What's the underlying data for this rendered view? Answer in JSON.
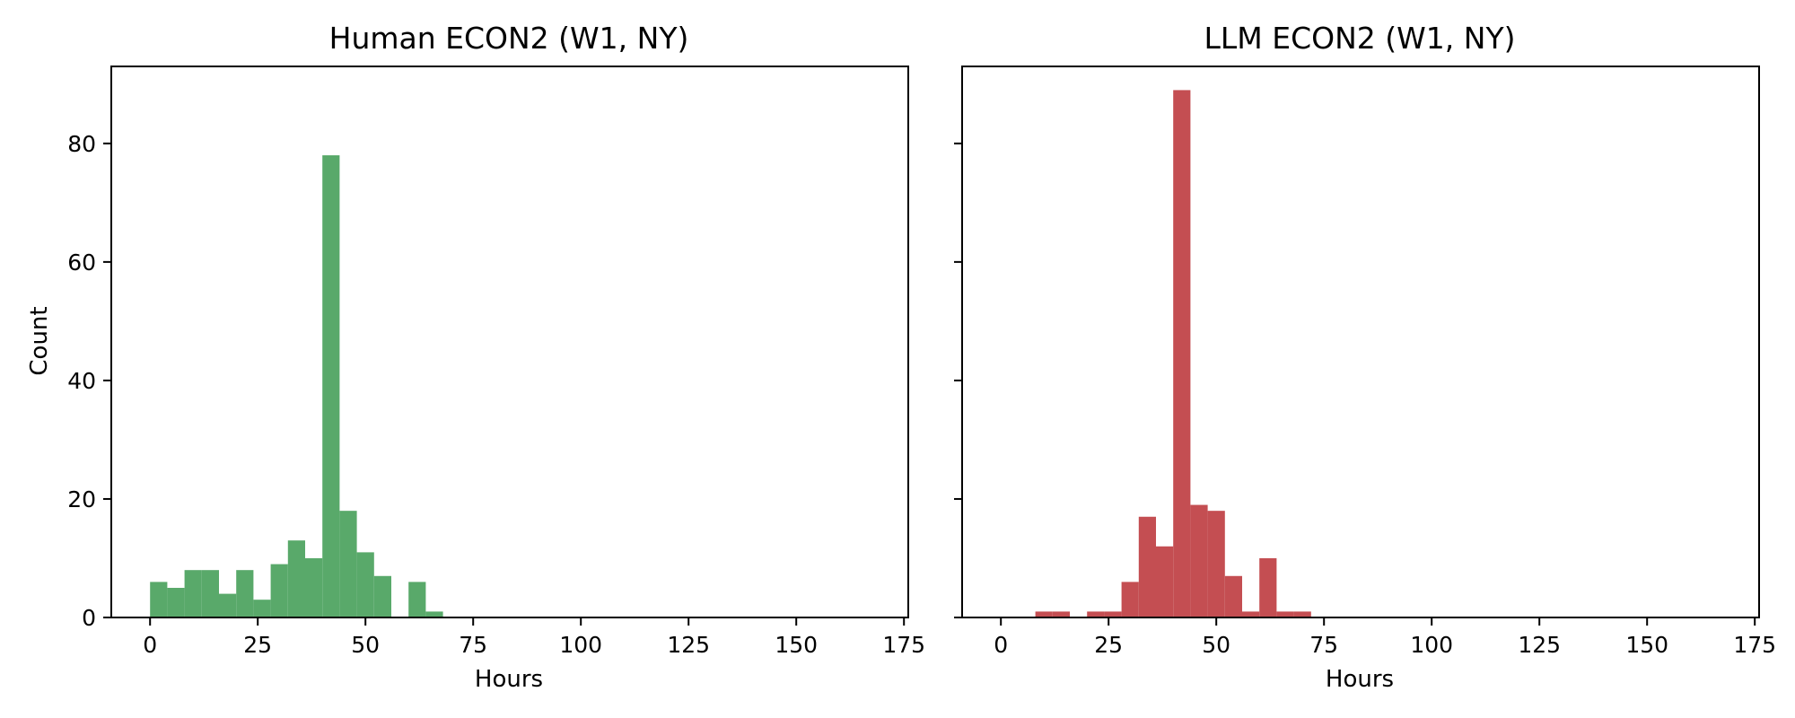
{
  "chart_data": [
    {
      "type": "bar",
      "title": "Human ECON2 (W1, NY)",
      "xlabel": "Hours",
      "ylabel": "Count",
      "color": "#59a96a",
      "bin_width": 4,
      "xlim": [
        -9,
        176
      ],
      "ylim": [
        0,
        93
      ],
      "xticks": [
        "0",
        "25",
        "50",
        "75",
        "100",
        "125",
        "150",
        "175"
      ],
      "yticks": [
        "0",
        "20",
        "40",
        "60",
        "80"
      ],
      "bins": [
        {
          "x": 0,
          "count": 6
        },
        {
          "x": 4,
          "count": 5
        },
        {
          "x": 8,
          "count": 8
        },
        {
          "x": 12,
          "count": 8
        },
        {
          "x": 16,
          "count": 4
        },
        {
          "x": 20,
          "count": 8
        },
        {
          "x": 24,
          "count": 3
        },
        {
          "x": 28,
          "count": 9
        },
        {
          "x": 32,
          "count": 13
        },
        {
          "x": 36,
          "count": 10
        },
        {
          "x": 40,
          "count": 78
        },
        {
          "x": 44,
          "count": 18
        },
        {
          "x": 48,
          "count": 11
        },
        {
          "x": 52,
          "count": 7
        },
        {
          "x": 56,
          "count": 0
        },
        {
          "x": 60,
          "count": 6
        },
        {
          "x": 64,
          "count": 1
        }
      ]
    },
    {
      "type": "bar",
      "title": "LLM ECON2 (W1, NY)",
      "xlabel": "Hours",
      "ylabel": "",
      "color": "#c44e52",
      "bin_width": 4,
      "xlim": [
        -9,
        176
      ],
      "ylim": [
        0,
        93
      ],
      "xticks": [
        "0",
        "25",
        "50",
        "75",
        "100",
        "125",
        "150",
        "175"
      ],
      "yticks": [
        "0",
        "20",
        "40",
        "60",
        "80"
      ],
      "bins": [
        {
          "x": 8,
          "count": 1
        },
        {
          "x": 12,
          "count": 1
        },
        {
          "x": 20,
          "count": 1
        },
        {
          "x": 24,
          "count": 1
        },
        {
          "x": 28,
          "count": 6
        },
        {
          "x": 32,
          "count": 17
        },
        {
          "x": 36,
          "count": 12
        },
        {
          "x": 40,
          "count": 89
        },
        {
          "x": 44,
          "count": 19
        },
        {
          "x": 48,
          "count": 18
        },
        {
          "x": 52,
          "count": 7
        },
        {
          "x": 56,
          "count": 1
        },
        {
          "x": 60,
          "count": 10
        },
        {
          "x": 64,
          "count": 1
        },
        {
          "x": 68,
          "count": 1
        }
      ]
    }
  ]
}
